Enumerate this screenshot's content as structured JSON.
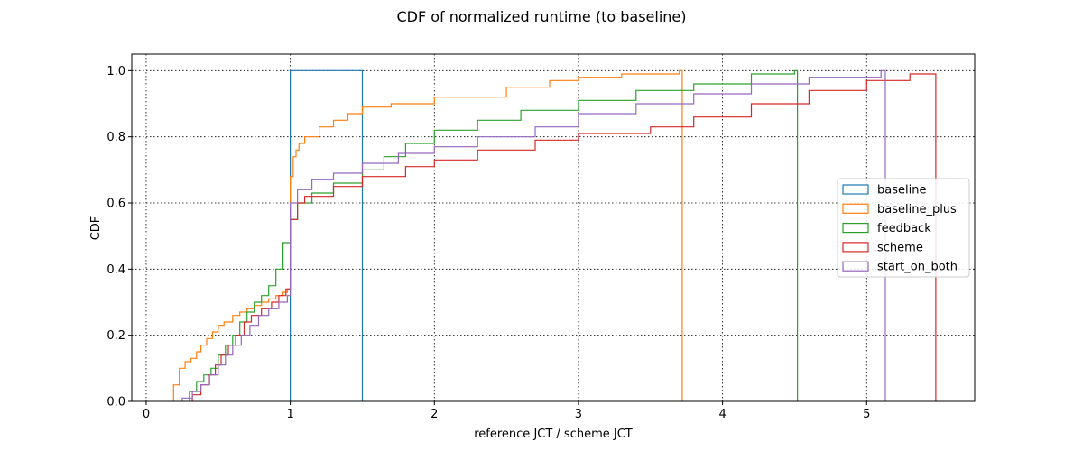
{
  "chart_data": {
    "type": "line",
    "title": "CDF of normalized runtime (to baseline)",
    "xlabel": "reference JCT / scheme JCT",
    "ylabel": "CDF",
    "xlim": [
      -0.1,
      5.75
    ],
    "ylim": [
      0.0,
      1.05
    ],
    "xticks": [
      0,
      1,
      2,
      3,
      4,
      5
    ],
    "xtick_labels": [
      "0",
      "1",
      "2",
      "3",
      "4",
      "5"
    ],
    "yticks": [
      0.0,
      0.2,
      0.4,
      0.6,
      0.8,
      1.0
    ],
    "ytick_labels": [
      "0.0",
      "0.2",
      "0.4",
      "0.6",
      "0.8",
      "1.0"
    ],
    "grid": true,
    "legend_position": "center-right",
    "series": [
      {
        "name": "baseline",
        "color": "#1f77b4",
        "x": [
          1.0,
          1.0,
          1.5,
          1.5
        ],
        "y": [
          0.0,
          1.0,
          1.0,
          0.0
        ]
      },
      {
        "name": "baseline_plus",
        "color": "#ff7f0e",
        "x": [
          0.19,
          0.19,
          0.23,
          0.23,
          0.27,
          0.27,
          0.31,
          0.31,
          0.35,
          0.35,
          0.38,
          0.38,
          0.42,
          0.42,
          0.46,
          0.46,
          0.5,
          0.5,
          0.54,
          0.54,
          0.6,
          0.6,
          0.65,
          0.65,
          0.7,
          0.7,
          0.75,
          0.75,
          0.8,
          0.8,
          0.85,
          0.85,
          0.9,
          0.9,
          0.95,
          0.95,
          0.98,
          0.98,
          1.0,
          1.0,
          1.02,
          1.02,
          1.04,
          1.04,
          1.06,
          1.06,
          1.1,
          1.1,
          1.2,
          1.2,
          1.3,
          1.3,
          1.4,
          1.4,
          1.5,
          1.5,
          1.7,
          1.7,
          2.0,
          2.0,
          2.5,
          2.5,
          2.8,
          2.8,
          3.0,
          3.0,
          3.3,
          3.3,
          3.7,
          3.7,
          3.72,
          3.72
        ],
        "y": [
          0.0,
          0.05,
          0.05,
          0.1,
          0.1,
          0.12,
          0.12,
          0.13,
          0.13,
          0.15,
          0.15,
          0.17,
          0.17,
          0.19,
          0.19,
          0.21,
          0.21,
          0.23,
          0.23,
          0.24,
          0.24,
          0.26,
          0.26,
          0.27,
          0.27,
          0.28,
          0.28,
          0.29,
          0.29,
          0.3,
          0.3,
          0.31,
          0.31,
          0.32,
          0.32,
          0.33,
          0.33,
          0.34,
          0.34,
          0.68,
          0.68,
          0.74,
          0.74,
          0.76,
          0.76,
          0.78,
          0.78,
          0.8,
          0.8,
          0.83,
          0.83,
          0.85,
          0.85,
          0.87,
          0.87,
          0.89,
          0.89,
          0.9,
          0.9,
          0.92,
          0.92,
          0.95,
          0.95,
          0.97,
          0.97,
          0.98,
          0.98,
          0.99,
          0.99,
          1.0,
          1.0,
          0.0
        ]
      },
      {
        "name": "feedback",
        "color": "#2ca02c",
        "x": [
          0.3,
          0.3,
          0.35,
          0.35,
          0.4,
          0.4,
          0.45,
          0.45,
          0.5,
          0.5,
          0.55,
          0.55,
          0.6,
          0.6,
          0.65,
          0.65,
          0.7,
          0.7,
          0.75,
          0.75,
          0.8,
          0.8,
          0.85,
          0.85,
          0.9,
          0.9,
          0.95,
          0.95,
          1.0,
          1.0,
          1.05,
          1.05,
          1.15,
          1.15,
          1.3,
          1.3,
          1.5,
          1.5,
          1.65,
          1.65,
          1.8,
          1.8,
          2.0,
          2.0,
          2.3,
          2.3,
          2.6,
          2.6,
          3.0,
          3.0,
          3.4,
          3.4,
          3.8,
          3.8,
          4.2,
          4.2,
          4.5,
          4.5,
          4.52,
          4.52
        ],
        "y": [
          0.0,
          0.03,
          0.03,
          0.06,
          0.06,
          0.08,
          0.08,
          0.1,
          0.1,
          0.14,
          0.14,
          0.17,
          0.17,
          0.2,
          0.2,
          0.24,
          0.24,
          0.27,
          0.27,
          0.3,
          0.3,
          0.32,
          0.32,
          0.35,
          0.35,
          0.4,
          0.4,
          0.48,
          0.48,
          0.55,
          0.55,
          0.6,
          0.6,
          0.63,
          0.63,
          0.66,
          0.66,
          0.7,
          0.7,
          0.74,
          0.74,
          0.78,
          0.78,
          0.82,
          0.82,
          0.85,
          0.85,
          0.88,
          0.88,
          0.91,
          0.91,
          0.94,
          0.94,
          0.96,
          0.96,
          0.99,
          0.99,
          1.0,
          1.0,
          0.0
        ]
      },
      {
        "name": "scheme",
        "color": "#d62728",
        "x": [
          0.32,
          0.32,
          0.38,
          0.38,
          0.43,
          0.43,
          0.48,
          0.48,
          0.52,
          0.52,
          0.57,
          0.57,
          0.62,
          0.62,
          0.68,
          0.68,
          0.73,
          0.73,
          0.8,
          0.8,
          0.87,
          0.87,
          0.92,
          0.92,
          0.97,
          0.97,
          1.0,
          1.0,
          1.05,
          1.05,
          1.1,
          1.1,
          1.3,
          1.3,
          1.5,
          1.5,
          1.8,
          1.8,
          2.0,
          2.0,
          2.3,
          2.3,
          2.7,
          2.7,
          3.0,
          3.0,
          3.5,
          3.5,
          3.8,
          3.8,
          4.2,
          4.2,
          4.6,
          4.6,
          5.0,
          5.0,
          5.3,
          5.3,
          5.48,
          5.48
        ],
        "y": [
          0.0,
          0.02,
          0.02,
          0.05,
          0.05,
          0.08,
          0.08,
          0.11,
          0.11,
          0.14,
          0.14,
          0.17,
          0.17,
          0.2,
          0.2,
          0.24,
          0.24,
          0.26,
          0.26,
          0.28,
          0.28,
          0.3,
          0.3,
          0.32,
          0.32,
          0.34,
          0.34,
          0.55,
          0.55,
          0.6,
          0.6,
          0.62,
          0.62,
          0.65,
          0.65,
          0.68,
          0.68,
          0.71,
          0.71,
          0.73,
          0.73,
          0.76,
          0.76,
          0.79,
          0.79,
          0.81,
          0.81,
          0.83,
          0.83,
          0.86,
          0.86,
          0.9,
          0.9,
          0.94,
          0.94,
          0.97,
          0.97,
          0.99,
          0.99,
          0.0
        ]
      },
      {
        "name": "start_on_both",
        "color": "#9467bd",
        "x": [
          0.25,
          0.25,
          0.32,
          0.32,
          0.38,
          0.38,
          0.44,
          0.44,
          0.5,
          0.5,
          0.55,
          0.55,
          0.6,
          0.6,
          0.66,
          0.66,
          0.72,
          0.72,
          0.78,
          0.78,
          0.85,
          0.85,
          0.92,
          0.92,
          0.98,
          0.98,
          1.0,
          1.0,
          1.05,
          1.05,
          1.15,
          1.15,
          1.3,
          1.3,
          1.5,
          1.5,
          1.75,
          1.75,
          2.0,
          2.0,
          2.3,
          2.3,
          2.7,
          2.7,
          3.0,
          3.0,
          3.4,
          3.4,
          3.8,
          3.8,
          4.2,
          4.2,
          4.6,
          4.6,
          5.1,
          5.1,
          5.13,
          5.13
        ],
        "y": [
          0.0,
          0.01,
          0.01,
          0.03,
          0.03,
          0.05,
          0.05,
          0.08,
          0.08,
          0.11,
          0.11,
          0.14,
          0.14,
          0.17,
          0.17,
          0.2,
          0.2,
          0.23,
          0.23,
          0.26,
          0.26,
          0.28,
          0.28,
          0.3,
          0.3,
          0.32,
          0.32,
          0.6,
          0.6,
          0.64,
          0.64,
          0.67,
          0.67,
          0.69,
          0.69,
          0.72,
          0.72,
          0.75,
          0.75,
          0.77,
          0.77,
          0.8,
          0.8,
          0.83,
          0.83,
          0.87,
          0.87,
          0.9,
          0.9,
          0.93,
          0.93,
          0.96,
          0.96,
          0.98,
          0.98,
          1.0,
          1.0,
          0.0
        ]
      }
    ]
  }
}
